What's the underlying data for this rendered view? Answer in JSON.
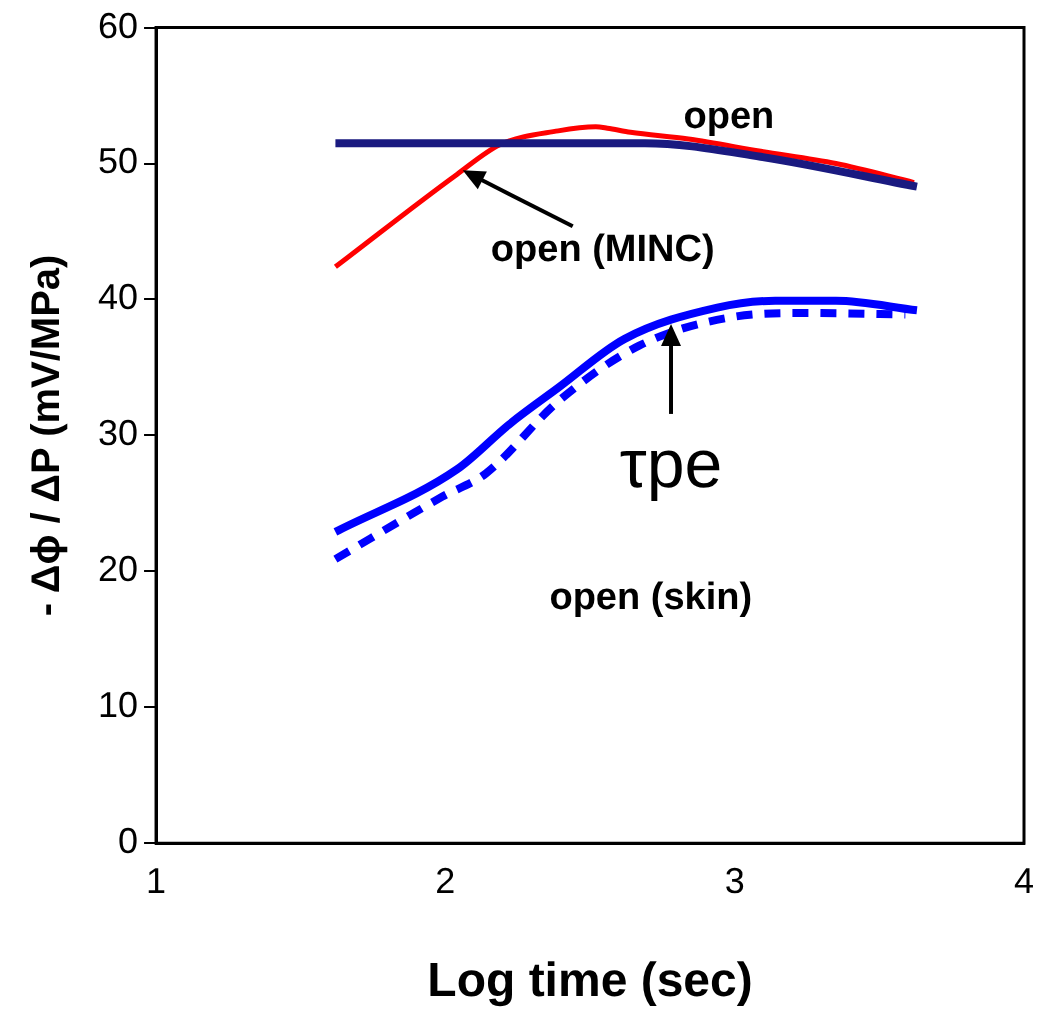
{
  "chart_data": {
    "type": "line",
    "xlabel": "Log time (sec)",
    "ylabel": "- Δϕ / ΔP (mV/MPa)",
    "xlim": [
      1,
      4
    ],
    "xticks": [
      1,
      2,
      3,
      4
    ],
    "ylim": [
      0,
      60
    ],
    "yticks": [
      0,
      10,
      20,
      30,
      40,
      50,
      60
    ],
    "grid": false,
    "legend": false,
    "marker": "none",
    "series": [
      {
        "color": "#1a1a80",
        "line_style": "solid",
        "x": [
          1.62,
          2.69,
          3.09,
          3.63
        ],
        "values": [
          51.5,
          51.5,
          50.5,
          48.3
        ]
      },
      {
        "color": "#ff0000",
        "line_style": "solid",
        "x": [
          1.62,
          2.04,
          2.19,
          2.39,
          2.52,
          2.56,
          2.64,
          2.84,
          3.09,
          3.35,
          3.62
        ],
        "values": [
          42.4,
          49.2,
          51.4,
          52.4,
          52.7,
          52.6,
          52.3,
          51.8,
          50.9,
          50.0,
          48.6
        ]
      },
      {
        "color": "#0000ff",
        "line_style": "solid",
        "x": [
          1.62,
          2.04,
          2.22,
          2.39,
          2.62,
          2.94,
          3.14,
          3.35,
          3.63
        ],
        "values": [
          22.9,
          27.5,
          30.8,
          33.5,
          37.1,
          39.4,
          39.9,
          39.9,
          39.2
        ]
      },
      {
        "color": "#0000ff",
        "line_style": "dashed",
        "x": [
          1.62,
          1.99,
          2.14,
          2.39,
          2.67,
          2.99,
          3.24,
          3.59
        ],
        "values": [
          20.9,
          25.5,
          27.2,
          32.5,
          36.6,
          38.7,
          39.0,
          38.9
        ]
      }
    ],
    "annotations": [
      "open",
      {
        "text": "open (MINC)",
        "x": 2.06,
        "y": 49.5
      },
      {
        "text": "τpe",
        "x": 2.78,
        "y": 38.2
      },
      "open (skin)"
    ]
  }
}
